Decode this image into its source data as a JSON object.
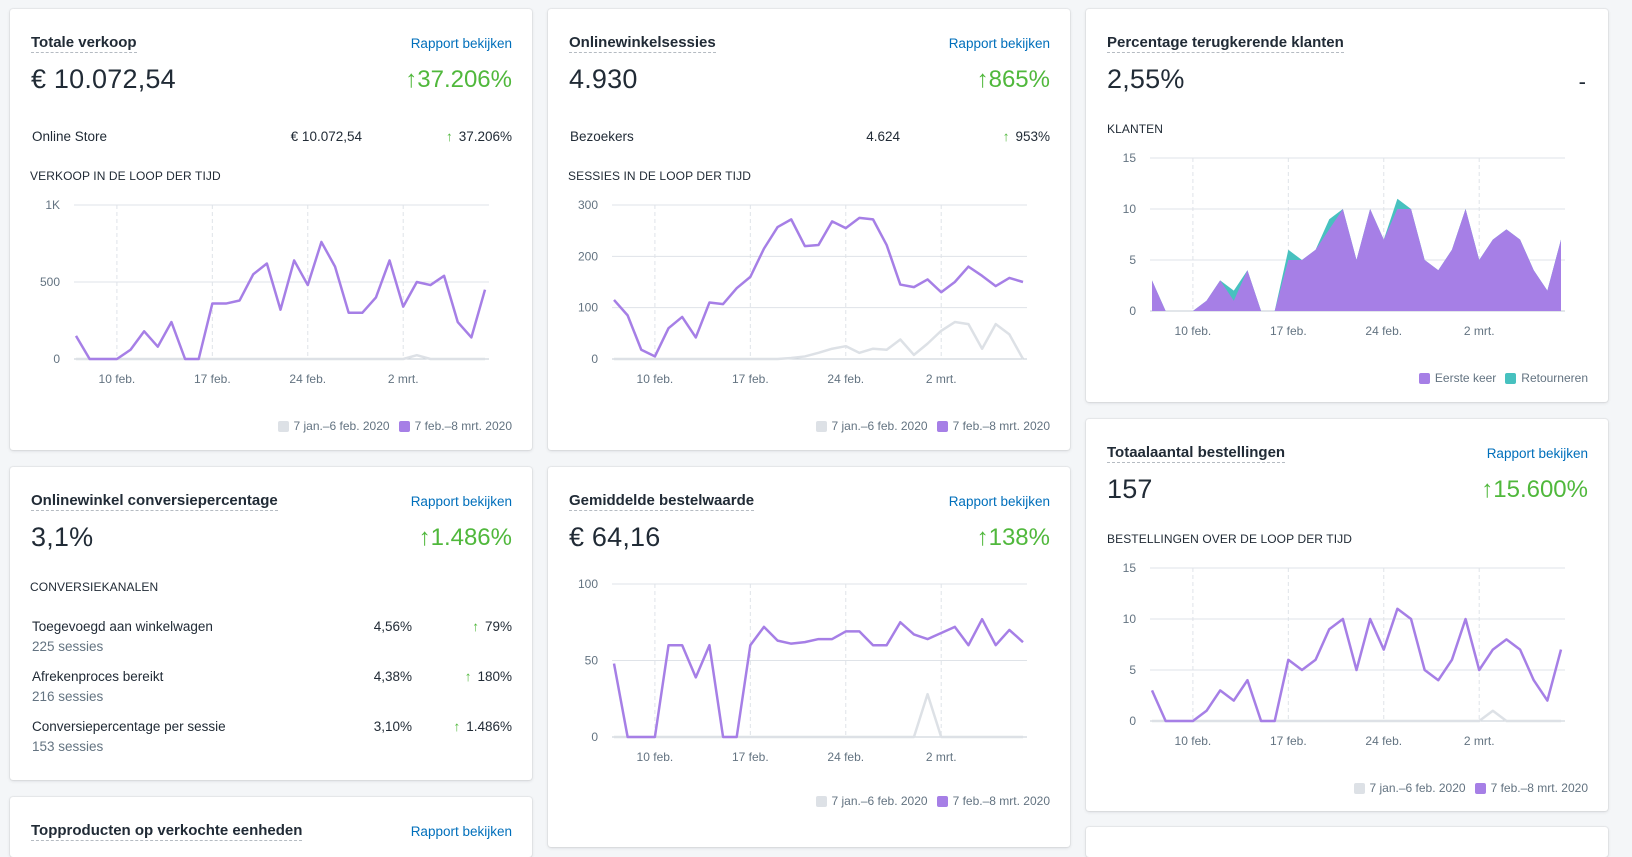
{
  "colors": {
    "current": "#a67fe6",
    "previous": "#dde1e6",
    "returning": "#47c1bf",
    "positive": "#50b83c",
    "link": "#006fbb"
  },
  "legend": {
    "prev": "7 jan.–6 feb. 2020",
    "curr": "7 feb.–8 mrt. 2020"
  },
  "x_ticks": [
    "10 feb.",
    "17 feb.",
    "24 feb.",
    "2 mrt."
  ],
  "cards": {
    "sales": {
      "title": "Totale verkoop",
      "link": "Rapport bekijken",
      "value": "€ 10.072,54",
      "change": "37.206%",
      "row": {
        "label": "Online Store",
        "value": "€ 10.072,54",
        "change": "37.206%"
      },
      "chart_heading": "VERKOOP IN DE LOOP DER TIJD"
    },
    "sessions": {
      "title": "Onlinewinkelsessies",
      "link": "Rapport bekijken",
      "value": "4.930",
      "change": "865%",
      "row": {
        "label": "Bezoekers",
        "value": "4.624",
        "change": "953%"
      },
      "chart_heading": "SESSIES IN DE LOOP DER TIJD"
    },
    "returning": {
      "title": "Percentage terugkerende klanten",
      "value": "2,55%",
      "change": "-",
      "chart_heading": "KLANTEN",
      "legend_first": "Eerste keer",
      "legend_returning": "Retourneren"
    },
    "conversion": {
      "title": "Onlinewinkel conversiepercentage",
      "link": "Rapport bekijken",
      "value": "3,1%",
      "change": "1.486%",
      "heading": "CONVERSIEKANALEN",
      "rows": [
        {
          "label": "Toegevoegd aan winkelwagen",
          "sub": "225 sessies",
          "value": "4,56%",
          "change": "79%"
        },
        {
          "label": "Afrekenproces bereikt",
          "sub": "216 sessies",
          "value": "4,38%",
          "change": "180%"
        },
        {
          "label": "Conversiepercentage per sessie",
          "sub": "153 sessies",
          "value": "3,10%",
          "change": "1.486%"
        }
      ]
    },
    "aov": {
      "title": "Gemiddelde bestelwaarde",
      "link": "Rapport bekijken",
      "value": "€ 64,16",
      "change": "138%"
    },
    "orders": {
      "title": "Totaalaantal bestellingen",
      "link": "Rapport bekijken",
      "value": "157",
      "change": "15.600%",
      "chart_heading": "BESTELLINGEN OVER DE LOOP DER TIJD"
    },
    "bottom": {
      "title": "Topproducten op verkochte eenheden",
      "link": "Rapport bekijken"
    }
  },
  "chart_data": [
    {
      "id": "sales",
      "type": "line",
      "y_ticks": [
        "0",
        "500",
        "1K"
      ],
      "ylim": [
        0,
        1000
      ],
      "x_start": "7 feb.",
      "series": [
        {
          "values": [
            150,
            0,
            0,
            0,
            60,
            180,
            80,
            240,
            0,
            0,
            360,
            360,
            380,
            550,
            620,
            320,
            640,
            480,
            760,
            600,
            300,
            300,
            400,
            640,
            340,
            500,
            480,
            540,
            240,
            140,
            450
          ]
        },
        {
          "values": [
            0,
            0,
            0,
            0,
            0,
            0,
            0,
            0,
            0,
            0,
            0,
            0,
            0,
            0,
            0,
            0,
            0,
            0,
            0,
            0,
            0,
            0,
            0,
            0,
            0,
            25,
            0,
            0,
            0,
            0,
            0
          ]
        }
      ]
    },
    {
      "id": "sessions",
      "type": "line",
      "y_ticks": [
        "0",
        "100",
        "200",
        "300"
      ],
      "ylim": [
        0,
        300
      ],
      "series": [
        {
          "values": [
            115,
            85,
            18,
            5,
            60,
            82,
            42,
            110,
            107,
            138,
            160,
            215,
            257,
            272,
            220,
            222,
            268,
            255,
            275,
            272,
            222,
            145,
            140,
            155,
            130,
            150,
            180,
            162,
            142,
            158,
            150
          ]
        },
        {
          "values": [
            0,
            0,
            0,
            0,
            0,
            0,
            0,
            0,
            0,
            0,
            0,
            0,
            0,
            2,
            5,
            12,
            20,
            25,
            12,
            20,
            18,
            38,
            8,
            30,
            55,
            72,
            68,
            20,
            68,
            48,
            0
          ]
        }
      ]
    },
    {
      "id": "returning",
      "type": "area",
      "y_ticks": [
        "0",
        "5",
        "10",
        "15"
      ],
      "ylim": [
        0,
        15
      ],
      "series": [
        {
          "values": [
            3,
            0,
            0,
            0,
            1,
            3,
            1,
            4,
            0,
            0,
            5,
            5,
            6,
            8,
            10,
            5,
            10,
            7,
            10,
            10,
            5,
            4,
            6,
            10,
            5,
            7,
            8,
            7,
            4,
            2,
            7
          ]
        },
        {
          "values": [
            0,
            0,
            0,
            0,
            0,
            0,
            1,
            0,
            0,
            0,
            1,
            0,
            0,
            1,
            0,
            0,
            0,
            0,
            1,
            0,
            0,
            0,
            0,
            0,
            0,
            0,
            0,
            0,
            0,
            0,
            0
          ]
        }
      ]
    },
    {
      "id": "aov",
      "type": "line",
      "y_ticks": [
        "0",
        "50",
        "100"
      ],
      "ylim": [
        0,
        100
      ],
      "series": [
        {
          "values": [
            48,
            0,
            0,
            0,
            60,
            60,
            39,
            60,
            0,
            0,
            60,
            72,
            63,
            61,
            62,
            64,
            64,
            69,
            69,
            60,
            60,
            75,
            67,
            64,
            68,
            72,
            60,
            77,
            60,
            70,
            62
          ]
        },
        {
          "values": [
            0,
            0,
            0,
            0,
            0,
            0,
            0,
            0,
            0,
            0,
            0,
            0,
            0,
            0,
            0,
            0,
            0,
            0,
            0,
            0,
            0,
            0,
            0,
            28,
            0,
            0,
            0,
            0,
            0,
            0,
            0
          ]
        }
      ]
    },
    {
      "id": "orders",
      "type": "line",
      "y_ticks": [
        "0",
        "5",
        "10",
        "15"
      ],
      "ylim": [
        0,
        15
      ],
      "series": [
        {
          "values": [
            3,
            0,
            0,
            0,
            1,
            3,
            2,
            4,
            0,
            0,
            6,
            5,
            6,
            9,
            10,
            5,
            10,
            7,
            11,
            10,
            5,
            4,
            6,
            10,
            5,
            7,
            8,
            7,
            4,
            2,
            7
          ]
        },
        {
          "values": [
            0,
            0,
            0,
            0,
            0,
            0,
            0,
            0,
            0,
            0,
            0,
            0,
            0,
            0,
            0,
            0,
            0,
            0,
            0,
            0,
            0,
            0,
            0,
            0,
            0,
            1,
            0,
            0,
            0,
            0,
            0
          ]
        }
      ]
    }
  ]
}
